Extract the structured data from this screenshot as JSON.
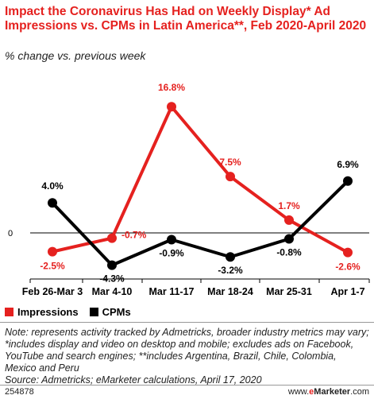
{
  "title": "Impact the Coronavirus Has Had on Weekly Display* Ad Impressions vs. CPMs in Latin America**, Feb 2020-April 2020",
  "subtitle": "% change vs. previous week",
  "chart_data": {
    "type": "line",
    "categories": [
      "Feb 26-Mar 3",
      "Mar 4-10",
      "Mar 11-17",
      "Mar 18-24",
      "Mar 25-31",
      "Apr 1-7"
    ],
    "series": [
      {
        "name": "Impressions",
        "color": "#e5211f",
        "values": [
          -2.5,
          -0.7,
          16.8,
          7.5,
          1.7,
          -2.6
        ],
        "labels": [
          "-2.5%",
          "-0.7%",
          "16.8%",
          "7.5%",
          "1.7%",
          "-2.6%"
        ]
      },
      {
        "name": "CPMs",
        "color": "#000000",
        "values": [
          4.0,
          -4.3,
          -0.9,
          -3.2,
          -0.8,
          6.9
        ],
        "labels": [
          "4.0%",
          "-4.3%",
          "-0.9%",
          "-3.2%",
          "-0.8%",
          "6.9%"
        ]
      }
    ],
    "ylim": [
      -6,
      20
    ],
    "zero_label": "0",
    "grid": false,
    "legend_position": "bottom-left"
  },
  "note": "Note: represents activity tracked by Admetricks, broader industry metrics may vary; *includes display and video on desktop and mobile; excludes ads on Facebook, YouTube and search engines; **includes Argentina, Brazil, Chile, Colombia, Mexico and Peru",
  "source": "Source: Admetricks; eMarketer calculations, April 17, 2020",
  "chart_id": "254878",
  "brand": {
    "www": "www.",
    "e": "e",
    "rest": "Marketer",
    "suffix": ".com"
  }
}
